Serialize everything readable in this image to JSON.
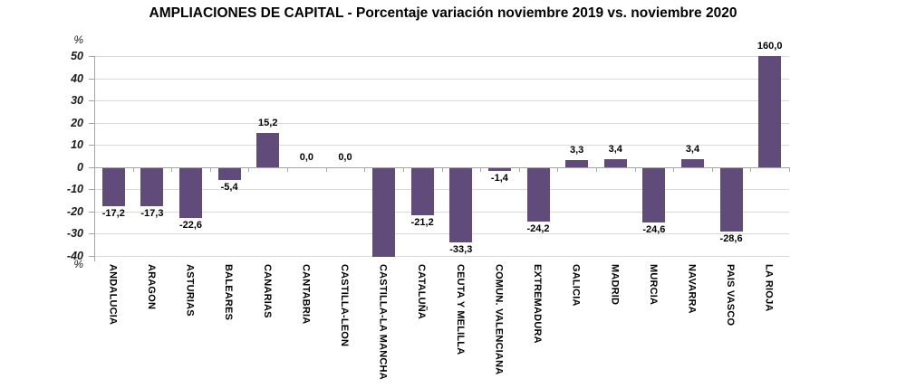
{
  "title": "AMPLIACIONES DE CAPITAL - Porcentaje variación noviembre 2019 vs. noviembre 2020",
  "chart_data": {
    "type": "bar",
    "title": "AMPLIACIONES DE CAPITAL - Porcentaje variación noviembre 2019 vs. noviembre 2020",
    "unit": "%",
    "categories": [
      "ANDALUCIA",
      "ARAGON",
      "ASTURIAS",
      "BALEARES",
      "CANARIAS",
      "CANTABRIA",
      "CASTILLA-LEON",
      "CASTILLA-LA MANCHA",
      "CATALUÑA",
      "CEUTA Y MELILLA",
      "COMUN. VALENCIANA",
      "EXTREMADURA",
      "GALICIA",
      "MADRID",
      "MURCIA",
      "NAVARRA",
      "PAIS VASCO",
      "LA RIOJA"
    ],
    "values": [
      -17.2,
      -17.3,
      -22.6,
      -5.4,
      15.2,
      0.0,
      0.0,
      null,
      -21.2,
      -33.3,
      -1.4,
      -24.2,
      3.3,
      3.4,
      -24.6,
      3.4,
      -28.6,
      160.0
    ],
    "value_labels": [
      "-17,2",
      "-17,3",
      "-22,6",
      "-5,4",
      "15,2",
      "0,0",
      "0,0",
      "",
      "-21,2",
      "-33,3",
      "-1,4",
      "-24,2",
      "3,3",
      "3,4",
      "-24,6",
      "3,4",
      "-28,6",
      "160,0"
    ],
    "clipped_bars": [
      {
        "category": "CASTILLA-LA MANCHA",
        "note": "bar clipped at axis minimum -40, no data label shown"
      },
      {
        "category": "LA RIOJA",
        "note": "value 160,0 exceeds axis maximum, bar clipped at 50"
      }
    ],
    "y_ticks": [
      "50",
      "40",
      "30",
      "20",
      "10",
      "0",
      "-10",
      "-20",
      "-30",
      "-40"
    ],
    "ylim": [
      -40,
      50
    ],
    "xlabel": "",
    "ylabel": "%",
    "grid": true,
    "legend": false,
    "bar_color": "#604B7A",
    "gridline_color": "#D9D9D9",
    "axis_color": "#A6A6A6"
  }
}
